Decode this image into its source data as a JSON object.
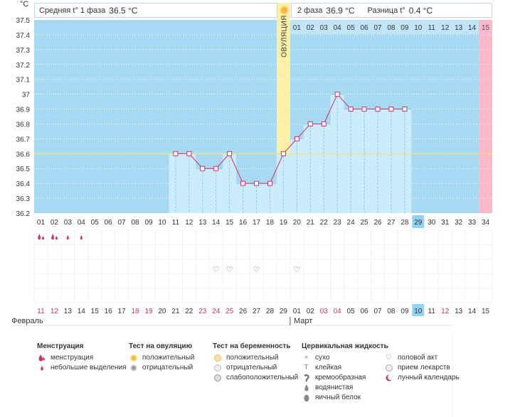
{
  "chart_data": {
    "type": "line",
    "ylabel": "°C",
    "ylim": [
      36.2,
      37.5
    ],
    "yticks": [
      36.2,
      36.3,
      36.4,
      36.5,
      36.6,
      36.7,
      36.8,
      36.9,
      37,
      37.1,
      37.2,
      37.3,
      37.4,
      37.5
    ],
    "cycle_days": [
      "01",
      "02",
      "03",
      "04",
      "05",
      "06",
      "07",
      "08",
      "09",
      "10",
      "11",
      "12",
      "13",
      "14",
      "15",
      "16",
      "17",
      "18",
      "19",
      "20",
      "21",
      "22",
      "23",
      "24",
      "25",
      "26",
      "27",
      "28",
      "29",
      "30",
      "31",
      "32",
      "33",
      "34"
    ],
    "highlight_cycle_day": "29",
    "temperatures": [
      null,
      null,
      null,
      null,
      null,
      null,
      null,
      null,
      null,
      null,
      36.6,
      36.6,
      36.5,
      36.5,
      36.6,
      36.4,
      36.4,
      36.4,
      36.6,
      36.7,
      36.8,
      36.8,
      37.0,
      36.9,
      36.9,
      36.9,
      36.9,
      36.9,
      null,
      null,
      null,
      null,
      null,
      null
    ],
    "phase2_days": [
      "01",
      "02",
      "03",
      "04",
      "05",
      "06",
      "07",
      "08",
      "09",
      "10",
      "11",
      "12",
      "13",
      "14",
      "15"
    ],
    "ovulation_day": "19",
    "coverline": 36.6,
    "calendar_dates": [
      "11",
      "12",
      "13",
      "14",
      "15",
      "16",
      "17",
      "18",
      "19",
      "20",
      "21",
      "22",
      "23",
      "24",
      "25",
      "26",
      "27",
      "28",
      "29",
      "01",
      "02",
      "03",
      "04",
      "05",
      "06",
      "07",
      "08",
      "09",
      "10",
      "11",
      "12",
      "13",
      "14",
      "15"
    ],
    "highlight_date_index": 28,
    "red_date_indices": [
      0,
      1,
      7,
      8,
      12,
      13,
      14,
      21,
      22,
      30
    ],
    "months": [
      "Февраль",
      "Март"
    ],
    "menstruation": [
      "large",
      "large",
      "small",
      "small"
    ],
    "intercourse_days": [
      14,
      15,
      17,
      20
    ]
  },
  "header": {
    "unit": "°C",
    "phase1_label": "Средняя t° 1 фаза",
    "phase1_value": "36.5 °C",
    "phase2_label": "2 фаза",
    "phase2_value": "36.9 °C",
    "diff_label": "Разница t°",
    "diff_value": "0.4 °C",
    "ovulation_label": "ОВУЛЯЦИЯ"
  },
  "colors": {
    "bg_blue": "#a7daf2",
    "bar_fill": "#cdecfb",
    "line": "#d0306a",
    "ovulation": "#fcf0a6",
    "phase_end": "#f9b9c9",
    "highlight": "#8fd2f1",
    "red_text": "#d0306a"
  },
  "legend": {
    "menstruation": {
      "title": "Менструация",
      "items": [
        "менструация",
        "небольшие выделения"
      ]
    },
    "ovulation_test": {
      "title": "Тест на овуляцию",
      "items": [
        "положительный",
        "отрицательный"
      ]
    },
    "pregnancy_test": {
      "title": "Тест на беременность",
      "items": [
        "положительный",
        "отрицательный",
        "слабоположительный"
      ]
    },
    "cervical": {
      "title": "Цервикальная жидкость",
      "items": [
        "сухо",
        "клейкая",
        "кремообразная",
        "водянистая",
        "яичный белок"
      ]
    },
    "other": {
      "items": [
        "половой акт",
        "прием лекарств",
        "лунный календарь"
      ]
    }
  }
}
